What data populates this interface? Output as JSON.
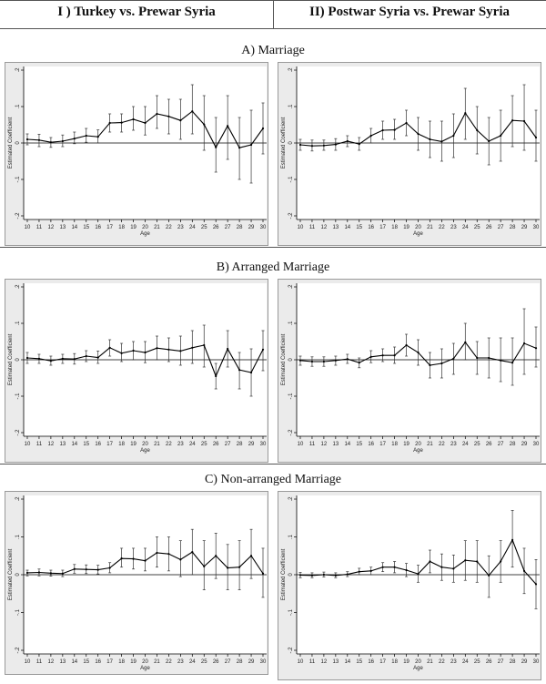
{
  "column_headers": [
    "I ) Turkey vs. Prewar Syria",
    "II) Postwar Syria vs. Prewar Syria"
  ],
  "section_headers": [
    "A)  Marriage",
    "B)  Arranged Marriage",
    "C)  Non-arranged Marriage"
  ],
  "chart_data": [
    {
      "type": "line",
      "section": "A) Marriage",
      "column": "I) Turkey vs. Prewar Syria",
      "xlabel": "Age",
      "ylabel": "Estimated Coefficient",
      "x": [
        10,
        11,
        12,
        13,
        14,
        15,
        16,
        17,
        18,
        19,
        20,
        21,
        22,
        23,
        24,
        25,
        26,
        27,
        28,
        29,
        30
      ],
      "y": [
        0.01,
        0.008,
        0.002,
        0.005,
        0.012,
        0.02,
        0.017,
        0.055,
        0.056,
        0.065,
        0.055,
        0.08,
        0.073,
        0.062,
        0.087,
        0.051,
        -0.012,
        0.047,
        -0.013,
        -0.005,
        0.04
      ],
      "ci_low": [
        -0.005,
        -0.01,
        -0.012,
        -0.01,
        -0.002,
        0.002,
        0.0,
        0.03,
        0.03,
        0.035,
        0.022,
        0.04,
        0.025,
        0.01,
        0.025,
        -0.02,
        -0.08,
        -0.045,
        -0.1,
        -0.11,
        -0.03
      ],
      "ci_high": [
        0.025,
        0.024,
        0.015,
        0.022,
        0.03,
        0.04,
        0.036,
        0.08,
        0.08,
        0.1,
        0.1,
        0.13,
        0.12,
        0.12,
        0.16,
        0.13,
        0.07,
        0.13,
        0.07,
        0.09,
        0.11
      ],
      "ylim": [
        -0.2,
        0.2
      ],
      "yticks": [
        -0.2,
        -0.1,
        0,
        0.1,
        0.2
      ],
      "ytick_labels": [
        "-.2",
        "-.1",
        "0",
        ".1",
        ".2"
      ],
      "grid": false
    },
    {
      "type": "line",
      "section": "A) Marriage",
      "column": "II) Postwar Syria vs. Prewar Syria",
      "xlabel": "Age",
      "ylabel": "Estimated Coefficient",
      "x": [
        10,
        11,
        12,
        13,
        14,
        15,
        16,
        17,
        18,
        19,
        20,
        21,
        22,
        23,
        24,
        25,
        26,
        27,
        28,
        29,
        30
      ],
      "y": [
        -0.005,
        -0.008,
        -0.007,
        -0.004,
        0.005,
        -0.003,
        0.02,
        0.035,
        0.036,
        0.055,
        0.025,
        0.01,
        0.004,
        0.02,
        0.082,
        0.035,
        0.005,
        0.02,
        0.062,
        0.06,
        0.015
      ],
      "ci_low": [
        -0.02,
        -0.022,
        -0.02,
        -0.02,
        -0.01,
        -0.02,
        0.0,
        0.01,
        0.01,
        0.02,
        -0.02,
        -0.04,
        -0.05,
        -0.04,
        0.01,
        -0.03,
        -0.06,
        -0.05,
        -0.01,
        -0.02,
        -0.05
      ],
      "ci_high": [
        0.01,
        0.008,
        0.008,
        0.012,
        0.02,
        0.015,
        0.04,
        0.06,
        0.065,
        0.09,
        0.07,
        0.06,
        0.06,
        0.08,
        0.15,
        0.1,
        0.07,
        0.09,
        0.13,
        0.16,
        0.09
      ],
      "ylim": [
        -0.2,
        0.2
      ],
      "yticks": [
        -0.2,
        -0.1,
        0,
        0.1,
        0.2
      ],
      "ytick_labels": [
        "-.2",
        "-.1",
        "0",
        ".1",
        ".2"
      ],
      "grid": false
    },
    {
      "type": "line",
      "section": "B) Arranged Marriage",
      "column": "I) Turkey vs. Prewar Syria",
      "xlabel": "Age",
      "ylabel": "Estimated Coefficient",
      "x": [
        10,
        11,
        12,
        13,
        14,
        15,
        16,
        17,
        18,
        19,
        20,
        21,
        22,
        23,
        24,
        25,
        26,
        27,
        28,
        29,
        30
      ],
      "y": [
        0.005,
        0.003,
        -0.003,
        0.003,
        0.002,
        0.01,
        0.006,
        0.033,
        0.018,
        0.025,
        0.02,
        0.032,
        0.028,
        0.024,
        0.033,
        0.04,
        -0.045,
        0.03,
        -0.028,
        -0.035,
        0.028
      ],
      "ci_low": [
        -0.01,
        -0.01,
        -0.015,
        -0.01,
        -0.012,
        -0.005,
        -0.01,
        0.01,
        -0.005,
        0.0,
        -0.008,
        0.0,
        -0.005,
        -0.015,
        -0.01,
        -0.02,
        -0.08,
        -0.02,
        -0.08,
        -0.1,
        -0.03
      ],
      "ci_high": [
        0.02,
        0.015,
        0.01,
        0.015,
        0.017,
        0.025,
        0.024,
        0.055,
        0.045,
        0.05,
        0.05,
        0.065,
        0.06,
        0.065,
        0.08,
        0.095,
        -0.01,
        0.08,
        0.02,
        0.03,
        0.08
      ],
      "ylim": [
        -0.2,
        0.2
      ],
      "yticks": [
        -0.2,
        -0.1,
        0,
        0.1,
        0.2
      ],
      "ytick_labels": [
        "-.2",
        "-.1",
        "0",
        ".1",
        ".2"
      ],
      "grid": false
    },
    {
      "type": "line",
      "section": "B) Arranged Marriage",
      "column": "II) Postwar Syria vs. Prewar Syria",
      "xlabel": "Age",
      "ylabel": "Estimated Coefficient",
      "x": [
        10,
        11,
        12,
        13,
        14,
        15,
        16,
        17,
        18,
        19,
        20,
        21,
        22,
        23,
        24,
        25,
        26,
        27,
        28,
        29,
        30
      ],
      "y": [
        -0.002,
        -0.005,
        -0.005,
        -0.002,
        0.002,
        -0.008,
        0.008,
        0.012,
        0.012,
        0.04,
        0.02,
        -0.015,
        -0.01,
        0.003,
        0.048,
        0.005,
        0.005,
        -0.002,
        -0.008,
        0.045,
        0.032
      ],
      "ci_low": [
        -0.015,
        -0.018,
        -0.018,
        -0.015,
        -0.01,
        -0.022,
        -0.008,
        -0.005,
        -0.01,
        0.01,
        -0.015,
        -0.05,
        -0.05,
        -0.04,
        0.0,
        -0.04,
        -0.05,
        -0.06,
        -0.07,
        -0.04,
        -0.02
      ],
      "ci_high": [
        0.01,
        0.008,
        0.008,
        0.01,
        0.015,
        0.005,
        0.025,
        0.03,
        0.035,
        0.07,
        0.055,
        0.02,
        0.03,
        0.045,
        0.1,
        0.05,
        0.06,
        0.06,
        0.06,
        0.14,
        0.09
      ],
      "ylim": [
        -0.2,
        0.2
      ],
      "yticks": [
        -0.2,
        -0.1,
        0,
        0.1,
        0.2
      ],
      "ytick_labels": [
        "-.2",
        "-.1",
        "0",
        ".1",
        ".2"
      ],
      "grid": false
    },
    {
      "type": "line",
      "section": "C) Non-arranged Marriage",
      "column": "I) Turkey vs. Prewar Syria",
      "xlabel": "Age",
      "ylabel": "Estimated Coefficient",
      "x": [
        10,
        11,
        12,
        13,
        14,
        15,
        16,
        17,
        18,
        19,
        20,
        21,
        22,
        23,
        24,
        25,
        26,
        27,
        28,
        29,
        30
      ],
      "y": [
        0.005,
        0.006,
        0.004,
        0.003,
        0.015,
        0.014,
        0.013,
        0.018,
        0.043,
        0.042,
        0.037,
        0.058,
        0.055,
        0.04,
        0.06,
        0.022,
        0.05,
        0.018,
        0.02,
        0.05,
        0.003
      ],
      "ci_low": [
        -0.003,
        -0.003,
        -0.004,
        -0.005,
        0.004,
        0.003,
        0.002,
        0.005,
        0.02,
        0.015,
        0.01,
        0.02,
        0.01,
        -0.005,
        0.0,
        -0.04,
        -0.01,
        -0.04,
        -0.04,
        -0.01,
        -0.06
      ],
      "ci_high": [
        0.012,
        0.015,
        0.012,
        0.012,
        0.027,
        0.026,
        0.025,
        0.032,
        0.07,
        0.07,
        0.07,
        0.1,
        0.1,
        0.09,
        0.12,
        0.09,
        0.11,
        0.08,
        0.09,
        0.12,
        0.07
      ],
      "ylim": [
        -0.2,
        0.2
      ],
      "yticks": [
        -0.2,
        -0.1,
        0,
        0.1,
        0.2
      ],
      "ytick_labels": [
        "-.2",
        "-.1",
        "0",
        ".1",
        ".2"
      ],
      "grid": false
    },
    {
      "type": "line",
      "section": "C) Non-arranged Marriage",
      "column": "II) Postwar Syria vs. Prewar Syria",
      "xlabel": "Age",
      "ylabel": "Estimated Coefficient",
      "x": [
        10,
        11,
        12,
        13,
        14,
        15,
        16,
        17,
        18,
        19,
        20,
        21,
        22,
        23,
        24,
        25,
        26,
        27,
        28,
        29,
        30
      ],
      "y": [
        -0.001,
        -0.002,
        0.0,
        -0.002,
        0.001,
        0.008,
        0.01,
        0.02,
        0.02,
        0.012,
        0.002,
        0.035,
        0.02,
        0.016,
        0.038,
        0.035,
        -0.002,
        0.035,
        0.092,
        0.01,
        -0.025
      ],
      "ci_low": [
        -0.008,
        -0.008,
        -0.006,
        -0.008,
        -0.005,
        0.0,
        0.0,
        0.008,
        0.005,
        -0.005,
        -0.02,
        0.005,
        -0.015,
        -0.02,
        -0.015,
        -0.02,
        -0.06,
        -0.02,
        0.02,
        -0.05,
        -0.09
      ],
      "ci_high": [
        0.006,
        0.005,
        0.007,
        0.005,
        0.008,
        0.017,
        0.02,
        0.032,
        0.035,
        0.03,
        0.025,
        0.065,
        0.055,
        0.052,
        0.09,
        0.09,
        0.05,
        0.09,
        0.17,
        0.07,
        0.04
      ],
      "ylim": [
        -0.2,
        0.2
      ],
      "yticks": [
        -0.2,
        -0.1,
        0,
        0.1,
        0.2
      ],
      "ytick_labels": [
        "-.2",
        "-.1",
        "0",
        ".1",
        ".2"
      ],
      "grid": false
    }
  ]
}
